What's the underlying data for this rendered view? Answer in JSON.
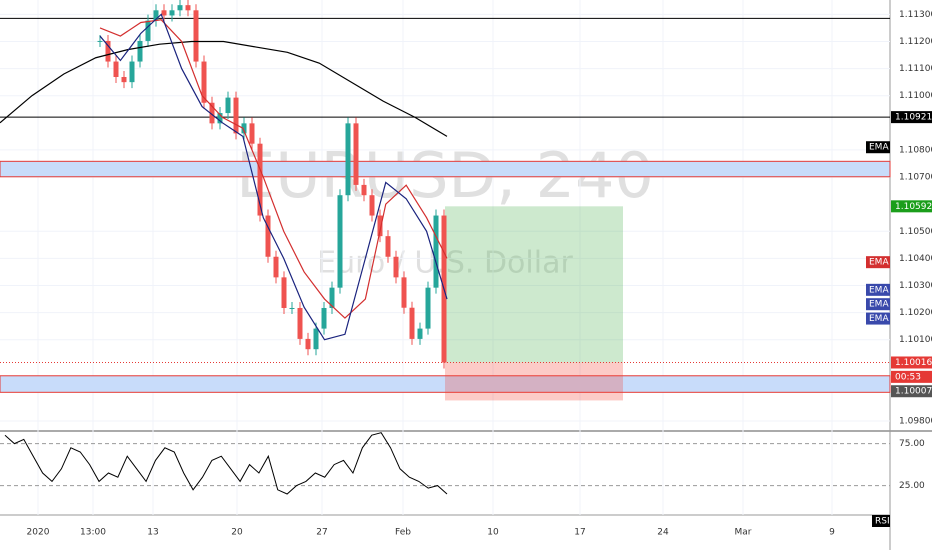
{
  "screen": {
    "watermark": {
      "symbol": "EURUSD, 240",
      "description": "Euro / U.S. Dollar"
    },
    "price_axis": {
      "ylim": [
        1.09767,
        1.11353
      ],
      "ticks": [
        {
          "value": 1.113,
          "label": "1.11300"
        },
        {
          "value": 1.112,
          "label": "1.11200"
        },
        {
          "value": 1.111,
          "label": "1.11100"
        },
        {
          "value": 1.11,
          "label": "1.11000"
        },
        {
          "value": 1.108,
          "label": "1.10800"
        },
        {
          "value": 1.107,
          "label": "1.10700"
        },
        {
          "value": 1.105,
          "label": "1.10500"
        },
        {
          "value": 1.104,
          "label": "1.10400"
        },
        {
          "value": 1.103,
          "label": "1.10300"
        },
        {
          "value": 1.102,
          "label": "1.10200"
        },
        {
          "value": 1.101,
          "label": "1.10100"
        },
        {
          "value": 1.098,
          "label": "1.09800"
        }
      ]
    },
    "x_axis": {
      "labels": [
        "2020",
        "13:00",
        "13",
        "20",
        "27",
        "Feb",
        "10",
        "17",
        "24",
        "Mar",
        "9"
      ]
    },
    "price": {
      "color": "#26a69a",
      "down_color": "#ef5350",
      "values": [
        1.11202,
        1.11126,
        1.11069,
        1.1105,
        1.11126,
        1.11202,
        1.11277,
        1.11315,
        1.11296,
        1.11315,
        1.11334,
        1.11315,
        1.11126,
        1.10974,
        1.10898,
        1.10936,
        1.10993,
        1.10861,
        1.10898,
        1.10823,
        1.10558,
        1.10406,
        1.1033,
        1.10217,
        1.10217,
        1.10103,
        1.10065,
        1.10141,
        1.10217,
        1.10292,
        1.10633,
        1.10898,
        1.10671,
        1.10633,
        1.10558,
        1.10482,
        1.10406,
        1.1033,
        1.10218,
        1.10103,
        1.10141,
        1.10292,
        1.10558,
        1.10016
      ]
    },
    "emas": [
      {
        "color": "#000000",
        "values": [
          1.109,
          1.11,
          1.1108,
          1.1114,
          1.1117,
          1.1119,
          1.112,
          1.112,
          1.1118,
          1.1116,
          1.1112,
          1.1105,
          1.1098,
          1.1092,
          1.1085
        ]
      },
      {
        "color": "#d32f2f",
        "values": [
          1.1125,
          1.1122,
          1.1127,
          1.1128,
          1.112,
          1.11,
          1.1092,
          1.1088,
          1.107,
          1.105,
          1.1035,
          1.1025,
          1.1018,
          1.1025,
          1.106,
          1.1067,
          1.1055,
          1.104
        ]
      },
      {
        "color": "#1a237e",
        "values": [
          1.1122,
          1.1113,
          1.1123,
          1.113,
          1.111,
          1.1096,
          1.109,
          1.1085,
          1.1055,
          1.104,
          1.1022,
          1.101,
          1.1012,
          1.104,
          1.1068,
          1.1062,
          1.105,
          1.1025
        ]
      }
    ],
    "levels": [
      {
        "value": 1.11285,
        "color": "#000000"
      },
      {
        "value": 1.10921,
        "color": "#000000"
      }
    ],
    "zones": [
      [
        1.10758,
        1.10701
      ],
      [
        1.09967,
        1.09906
      ]
    ],
    "position": {
      "entry": 1.10016,
      "target": 1.10592,
      "stop": 1.09876
    },
    "tags": [
      {
        "label": "1.10921",
        "value": 1.10921,
        "bg": "#000000"
      },
      {
        "label": "EMA",
        "value": 1.1081,
        "bg": "#000000"
      },
      {
        "label": "1.10592",
        "value": 1.10592,
        "bg": "#1b9e1b"
      },
      {
        "label": "EMA",
        "value": 1.10386,
        "bg": "#d32f2f"
      },
      {
        "label": "EMA",
        "value": 1.10284,
        "bg": "#3949ab"
      },
      {
        "label": "EMA",
        "value": 1.10231,
        "bg": "#3949ab"
      },
      {
        "label": "EMA",
        "value": 1.10178,
        "bg": "#3949ab"
      },
      {
        "label": "1.10016",
        "value": 1.10016,
        "bg": "#e53935"
      },
      {
        "label": "00:53",
        "value": 1.09963,
        "bg": "#e53935"
      },
      {
        "label": "1.10007",
        "value": 1.0991,
        "bg": "#555555"
      }
    ],
    "rsi": {
      "name": "RSI",
      "ylim": [
        -10,
        90
      ],
      "ticks": [
        {
          "value": 75,
          "label": "75.00"
        },
        {
          "value": 25,
          "label": "25.00"
        }
      ],
      "values": [
        85,
        75,
        80,
        60,
        40,
        30,
        45,
        70,
        65,
        50,
        30,
        40,
        35,
        60,
        45,
        30,
        55,
        70,
        65,
        40,
        20,
        35,
        55,
        60,
        45,
        30,
        50,
        40,
        60,
        20,
        15,
        25,
        30,
        40,
        35,
        50,
        55,
        40,
        70,
        85,
        88,
        70,
        45,
        35,
        30,
        22,
        25,
        15
      ]
    }
  }
}
